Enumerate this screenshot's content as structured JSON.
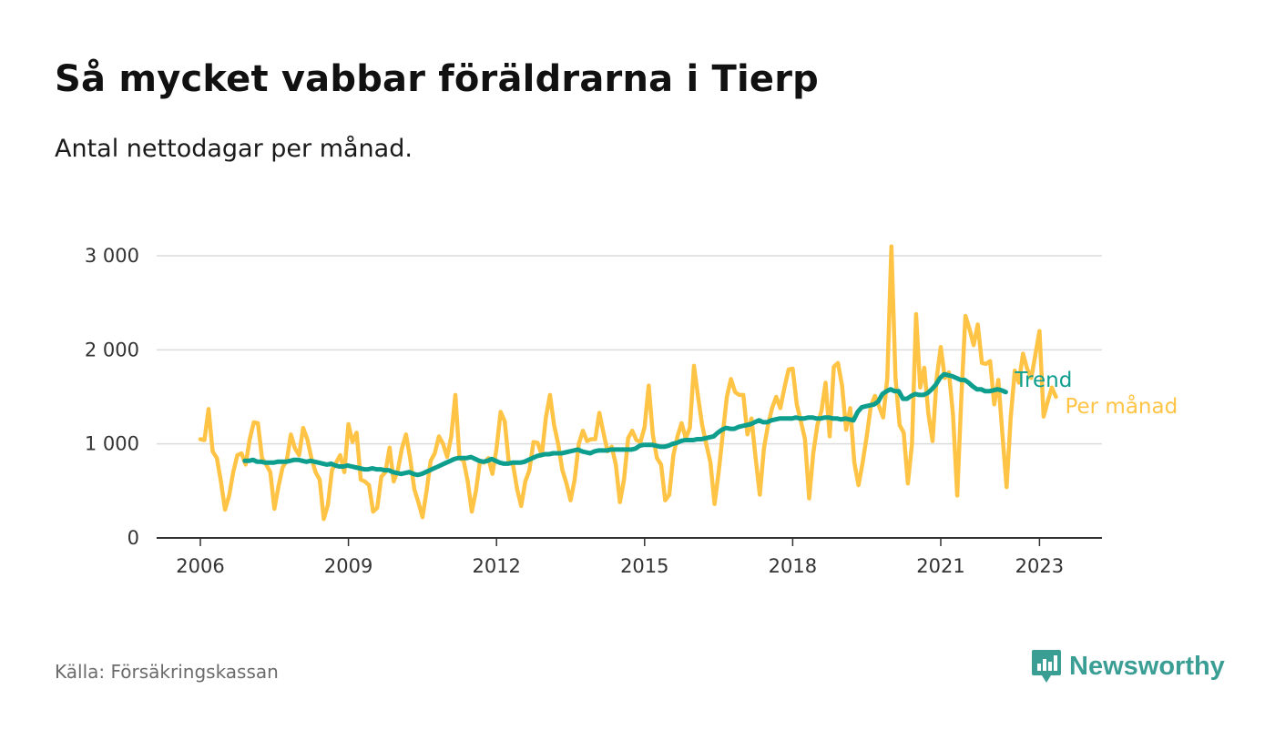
{
  "title": "Så mycket vabbar föräldrarna i Tierp",
  "subtitle": "Antal nettodagar per månad.",
  "source": "Källa: Försäkringskassan",
  "brand": "Newsworthy",
  "colors": {
    "monthly": "#FFC445",
    "trend": "#0E9E8E",
    "grid": "#dcdcdc",
    "axis": "#333333",
    "brand": "#3a9e94"
  },
  "icons": {
    "brand_logo": "bar-chart-speech-icon"
  },
  "chart_data": {
    "type": "line",
    "ylim": [
      0,
      3100
    ],
    "xlim": [
      2005.1,
      2024.2
    ],
    "y_ticks": [
      {
        "value": 0,
        "label": "0"
      },
      {
        "value": 1000,
        "label": "1 000"
      },
      {
        "value": 2000,
        "label": "2 000"
      },
      {
        "value": 3000,
        "label": "3 000"
      }
    ],
    "x_ticks": [
      {
        "value": 2006,
        "label": "2006"
      },
      {
        "value": 2009,
        "label": "2009"
      },
      {
        "value": 2012,
        "label": "2012"
      },
      {
        "value": 2015,
        "label": "2015"
      },
      {
        "value": 2018,
        "label": "2018"
      },
      {
        "value": 2021,
        "label": "2021"
      },
      {
        "value": 2023,
        "label": "2023"
      }
    ],
    "series": [
      {
        "name": "Per månad",
        "start": 2006.0,
        "step": 0.083333,
        "values": [
          1050,
          1040,
          1370,
          920,
          850,
          600,
          300,
          450,
          700,
          880,
          900,
          780,
          1050,
          1230,
          1220,
          850,
          780,
          700,
          310,
          550,
          750,
          820,
          1100,
          950,
          880,
          1170,
          1050,
          850,
          700,
          620,
          200,
          350,
          720,
          800,
          880,
          700,
          1210,
          1020,
          1120,
          620,
          600,
          560,
          280,
          320,
          650,
          700,
          960,
          600,
          720,
          950,
          1100,
          850,
          520,
          380,
          220,
          500,
          820,
          900,
          1080,
          1000,
          860,
          1080,
          1520,
          850,
          820,
          600,
          280,
          500,
          820,
          800,
          850,
          680,
          950,
          1340,
          1240,
          800,
          780,
          520,
          340,
          600,
          720,
          1020,
          1010,
          880,
          1280,
          1520,
          1200,
          1000,
          720,
          580,
          400,
          620,
          1000,
          1140,
          1030,
          1050,
          1050,
          1330,
          1120,
          920,
          970,
          780,
          380,
          620,
          1060,
          1140,
          1040,
          1020,
          1180,
          1620,
          1100,
          850,
          780,
          400,
          460,
          880,
          1080,
          1220,
          1060,
          1170,
          1830,
          1500,
          1200,
          1000,
          800,
          360,
          700,
          1100,
          1500,
          1690,
          1550,
          1520,
          1520,
          1100,
          1270,
          850,
          460,
          950,
          1200,
          1380,
          1500,
          1380,
          1600,
          1790,
          1800,
          1420,
          1240,
          1050,
          420,
          900,
          1200,
          1350,
          1650,
          1080,
          1820,
          1860,
          1620,
          1150,
          1380,
          800,
          560,
          800,
          1080,
          1400,
          1510,
          1400,
          1280,
          1700,
          3100,
          1700,
          1200,
          1120,
          580,
          1000,
          2380,
          1600,
          1810,
          1320,
          1030,
          1700,
          2030,
          1700,
          1760,
          1300,
          450,
          1500,
          2360,
          2220,
          2050,
          2270,
          1860,
          1850,
          1880,
          1420,
          1680,
          1100,
          540,
          1280,
          1780,
          1650,
          1960,
          1800,
          1700,
          1950,
          2200,
          1290,
          1450,
          1600,
          1500
        ]
      },
      {
        "name": "Trend",
        "start": 2006.9,
        "step": 0.083333,
        "values": [
          820,
          820,
          830,
          810,
          810,
          800,
          800,
          800,
          810,
          810,
          810,
          820,
          830,
          830,
          820,
          810,
          820,
          810,
          800,
          790,
          780,
          790,
          770,
          760,
          760,
          770,
          760,
          750,
          740,
          730,
          730,
          740,
          730,
          730,
          720,
          720,
          700,
          690,
          680,
          690,
          700,
          680,
          670,
          680,
          700,
          720,
          740,
          760,
          780,
          800,
          820,
          840,
          850,
          850,
          850,
          860,
          840,
          820,
          810,
          820,
          840,
          820,
          800,
          790,
          790,
          800,
          800,
          800,
          810,
          830,
          850,
          870,
          880,
          890,
          890,
          900,
          900,
          900,
          910,
          920,
          930,
          940,
          920,
          910,
          900,
          920,
          930,
          930,
          930,
          940,
          940,
          940,
          940,
          940,
          940,
          950,
          980,
          990,
          990,
          990,
          980,
          970,
          970,
          980,
          1000,
          1010,
          1030,
          1040,
          1040,
          1040,
          1050,
          1050,
          1060,
          1070,
          1080,
          1120,
          1150,
          1170,
          1160,
          1160,
          1180,
          1190,
          1200,
          1210,
          1230,
          1250,
          1230,
          1230,
          1250,
          1260,
          1270,
          1270,
          1270,
          1270,
          1280,
          1270,
          1270,
          1280,
          1280,
          1270,
          1270,
          1280,
          1280,
          1270,
          1270,
          1260,
          1270,
          1260,
          1250,
          1340,
          1390,
          1400,
          1410,
          1420,
          1450,
          1530,
          1560,
          1580,
          1560,
          1560,
          1480,
          1480,
          1510,
          1530,
          1520,
          1520,
          1540,
          1580,
          1630,
          1700,
          1740,
          1730,
          1720,
          1700,
          1680,
          1680,
          1650,
          1610,
          1580,
          1580,
          1560,
          1560,
          1570,
          1580,
          1570,
          1550
        ]
      }
    ],
    "legend": [
      {
        "name": "Trend",
        "label": "Trend",
        "placement": "line-end"
      },
      {
        "name": "Per månad",
        "label": "Per månad",
        "placement": "line-end"
      }
    ]
  }
}
